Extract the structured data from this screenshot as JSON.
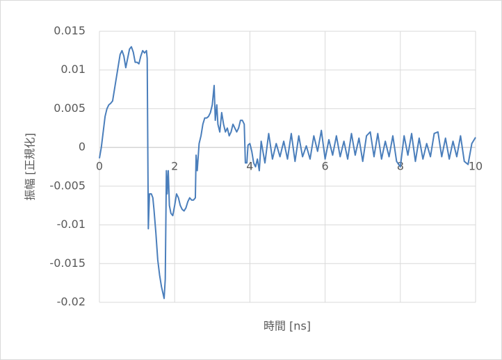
{
  "chart_data": {
    "type": "line",
    "x_label": "時間 [ns]",
    "y_label": "振幅 [正規化]",
    "color": "#4a7ebb",
    "grid": true,
    "xlim": [
      0,
      10
    ],
    "xticks": [
      0,
      2,
      4,
      6,
      8,
      10
    ],
    "ylim": [
      -0.02,
      0.015
    ],
    "yticks": [
      -0.02,
      -0.015,
      -0.01,
      -0.005,
      0,
      0.005,
      0.01,
      0.015
    ],
    "x": [
      0,
      0.05,
      0.1,
      0.15,
      0.2,
      0.25,
      0.3,
      0.35,
      0.4,
      0.45,
      0.5,
      0.55,
      0.6,
      0.65,
      0.7,
      0.75,
      0.8,
      0.85,
      0.9,
      0.95,
      1.0,
      1.05,
      1.1,
      1.15,
      1.2,
      1.25,
      1.27,
      1.3,
      1.33,
      1.38,
      1.42,
      1.45,
      1.5,
      1.55,
      1.6,
      1.65,
      1.72,
      1.75,
      1.78,
      1.8,
      1.83,
      1.86,
      1.9,
      1.95,
      2.0,
      2.05,
      2.1,
      2.15,
      2.2,
      2.25,
      2.3,
      2.35,
      2.4,
      2.45,
      2.5,
      2.55,
      2.57,
      2.6,
      2.65,
      2.7,
      2.75,
      2.8,
      2.85,
      2.9,
      2.95,
      3.0,
      3.05,
      3.08,
      3.12,
      3.15,
      3.2,
      3.25,
      3.3,
      3.35,
      3.4,
      3.45,
      3.5,
      3.55,
      3.6,
      3.65,
      3.7,
      3.75,
      3.8,
      3.85,
      3.88,
      3.92,
      3.95,
      4.0,
      4.05,
      4.1,
      4.15,
      4.2,
      4.25,
      4.3,
      4.4,
      4.5,
      4.6,
      4.7,
      4.8,
      4.9,
      5.0,
      5.1,
      5.2,
      5.3,
      5.4,
      5.5,
      5.6,
      5.7,
      5.8,
      5.9,
      6.0,
      6.1,
      6.2,
      6.3,
      6.4,
      6.5,
      6.6,
      6.7,
      6.8,
      6.9,
      7.0,
      7.1,
      7.2,
      7.3,
      7.4,
      7.5,
      7.6,
      7.7,
      7.8,
      7.9,
      8.0,
      8.1,
      8.2,
      8.3,
      8.4,
      8.5,
      8.6,
      8.7,
      8.8,
      8.9,
      9.0,
      9.1,
      9.2,
      9.3,
      9.4,
      9.5,
      9.6,
      9.7,
      9.8,
      9.9,
      10.0
    ],
    "values": [
      -0.0014,
      0.0,
      0.002,
      0.004,
      0.005,
      0.0055,
      0.0057,
      0.006,
      0.0075,
      0.009,
      0.0105,
      0.012,
      0.0125,
      0.0118,
      0.0103,
      0.0115,
      0.0127,
      0.013,
      0.0123,
      0.011,
      0.011,
      0.0108,
      0.0118,
      0.0125,
      0.0122,
      0.0125,
      0.0115,
      -0.0105,
      -0.006,
      -0.006,
      -0.0065,
      -0.008,
      -0.011,
      -0.0145,
      -0.0165,
      -0.018,
      -0.0195,
      -0.017,
      -0.003,
      -0.006,
      -0.003,
      -0.0075,
      -0.0085,
      -0.0088,
      -0.0075,
      -0.006,
      -0.0065,
      -0.0075,
      -0.008,
      -0.0082,
      -0.0078,
      -0.007,
      -0.0065,
      -0.0068,
      -0.0068,
      -0.0065,
      -0.001,
      -0.003,
      0.0005,
      0.0015,
      0.003,
      0.0038,
      0.0038,
      0.004,
      0.0045,
      0.0055,
      0.008,
      0.0035,
      0.0055,
      0.003,
      0.002,
      0.0045,
      0.003,
      0.002,
      0.0025,
      0.0015,
      0.002,
      0.003,
      0.0025,
      0.002,
      0.0025,
      0.0035,
      0.0035,
      0.003,
      -0.002,
      -0.002,
      0.0003,
      0.0005,
      -0.0005,
      -0.002,
      -0.0025,
      -0.0015,
      -0.003,
      0.0008,
      -0.002,
      0.0018,
      -0.0015,
      0.0005,
      -0.0012,
      0.0008,
      -0.0015,
      0.0018,
      -0.0018,
      0.0015,
      -0.0012,
      0.0002,
      -0.0015,
      0.0015,
      -0.0005,
      0.0022,
      -0.0015,
      0.001,
      -0.001,
      0.0015,
      -0.0012,
      0.0008,
      -0.0015,
      0.0018,
      -0.001,
      0.0012,
      -0.0018,
      0.0015,
      0.002,
      -0.0012,
      0.0018,
      -0.0015,
      0.0008,
      -0.0012,
      0.0015,
      -0.0018,
      -0.0025,
      0.0015,
      -0.001,
      0.0018,
      -0.0018,
      0.0012,
      -0.0015,
      0.0005,
      -0.0012,
      0.0018,
      0.002,
      -0.0012,
      0.0012,
      -0.0015,
      0.0008,
      -0.0012,
      0.0015,
      -0.0018,
      -0.0022,
      0.0005,
      0.0013
    ]
  }
}
